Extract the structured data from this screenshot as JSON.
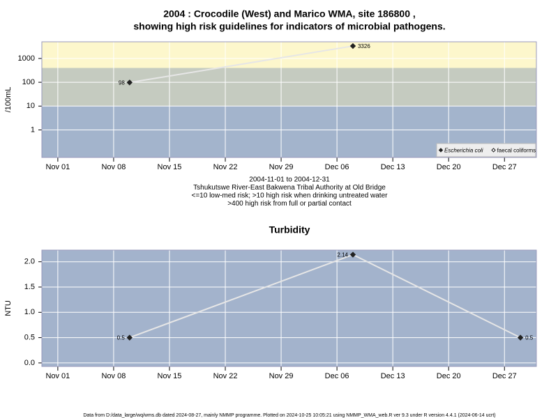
{
  "chart_data": [
    {
      "type": "line",
      "scale": "log",
      "title": [
        "2004 : Crocodile (West) and Marico WMA, site 186800 ,",
        "showing high risk guidelines for indicators of microbial pathogens."
      ],
      "ylabel": "/100mL",
      "notes": [
        "2004-11-01 to 2004-12-31",
        "Tshukutswe River-East Bakwena Tribal Authority at Old Bridge",
        "<=10 low-med risk; >10 high risk when drinking untreated water",
        ">400 high risk from full or partial contact"
      ],
      "x": [
        "2004-11-10",
        "2004-12-08"
      ],
      "series": [
        {
          "name": "Escherichia coli",
          "color": "#222222",
          "values": [
            98,
            3326
          ]
        },
        {
          "name": "faecal coliforms",
          "color": "#ffffff",
          "values": [
            null,
            null
          ]
        }
      ],
      "xlim": [
        "2004-10-30",
        "2004-12-31"
      ],
      "xticks": [
        {
          "value": "2004-11-01",
          "label": "Nov 01"
        },
        {
          "value": "2004-11-08",
          "label": "Nov 08"
        },
        {
          "value": "2004-11-15",
          "label": "Nov 15"
        },
        {
          "value": "2004-11-22",
          "label": "Nov 22"
        },
        {
          "value": "2004-11-29",
          "label": "Nov 29"
        },
        {
          "value": "2004-12-06",
          "label": "Dec 06"
        },
        {
          "value": "2004-12-13",
          "label": "Dec 13"
        },
        {
          "value": "2004-12-20",
          "label": "Dec 20"
        },
        {
          "value": "2004-12-27",
          "label": "Dec 27"
        }
      ],
      "ylim": [
        0.07,
        5000
      ],
      "yticks": [
        1,
        10,
        100,
        1000
      ],
      "bands": [
        {
          "to": 10,
          "color": "#a3b4cc"
        },
        {
          "from": 10,
          "to": 400,
          "color": "#c5cbc0"
        },
        {
          "from": 400,
          "color": "#fdf7cc"
        }
      ],
      "grid": true,
      "legend": "bottom-right"
    },
    {
      "type": "line",
      "scale": "linear",
      "title": "Turbidity",
      "ylabel": "NTU",
      "x": [
        "2004-11-10",
        "2004-12-08",
        "2004-12-29"
      ],
      "series": [
        {
          "name": "Turbidity",
          "color": "#222222",
          "values": [
            0.5,
            2.14,
            0.5
          ]
        }
      ],
      "xlim": [
        "2004-10-30",
        "2004-12-31"
      ],
      "xticks": [
        {
          "value": "2004-11-01",
          "label": "Nov 01"
        },
        {
          "value": "2004-11-08",
          "label": "Nov 08"
        },
        {
          "value": "2004-11-15",
          "label": "Nov 15"
        },
        {
          "value": "2004-11-22",
          "label": "Nov 22"
        },
        {
          "value": "2004-11-29",
          "label": "Nov 29"
        },
        {
          "value": "2004-12-06",
          "label": "Dec 06"
        },
        {
          "value": "2004-12-13",
          "label": "Dec 13"
        },
        {
          "value": "2004-12-20",
          "label": "Dec 20"
        },
        {
          "value": "2004-12-27",
          "label": "Dec 27"
        }
      ],
      "ylim": [
        -0.07,
        2.23
      ],
      "yticks": [
        {
          "value": 0,
          "label": "0.0"
        },
        0.5,
        {
          "value": 1,
          "label": "1.0"
        },
        1.5,
        {
          "value": 2,
          "label": "2.0"
        }
      ],
      "background": "#a3b3cc",
      "grid": true
    }
  ],
  "footer": "Data from D:/data_large/wq/wms.db dated 2024-08-27, mainly NMMP programme. Plotted on 2024-10-25 10:05:21 using NMMP_WMA_web.R ver 9.3 under R version 4.4.1 (2024-06-14 ucrt)"
}
